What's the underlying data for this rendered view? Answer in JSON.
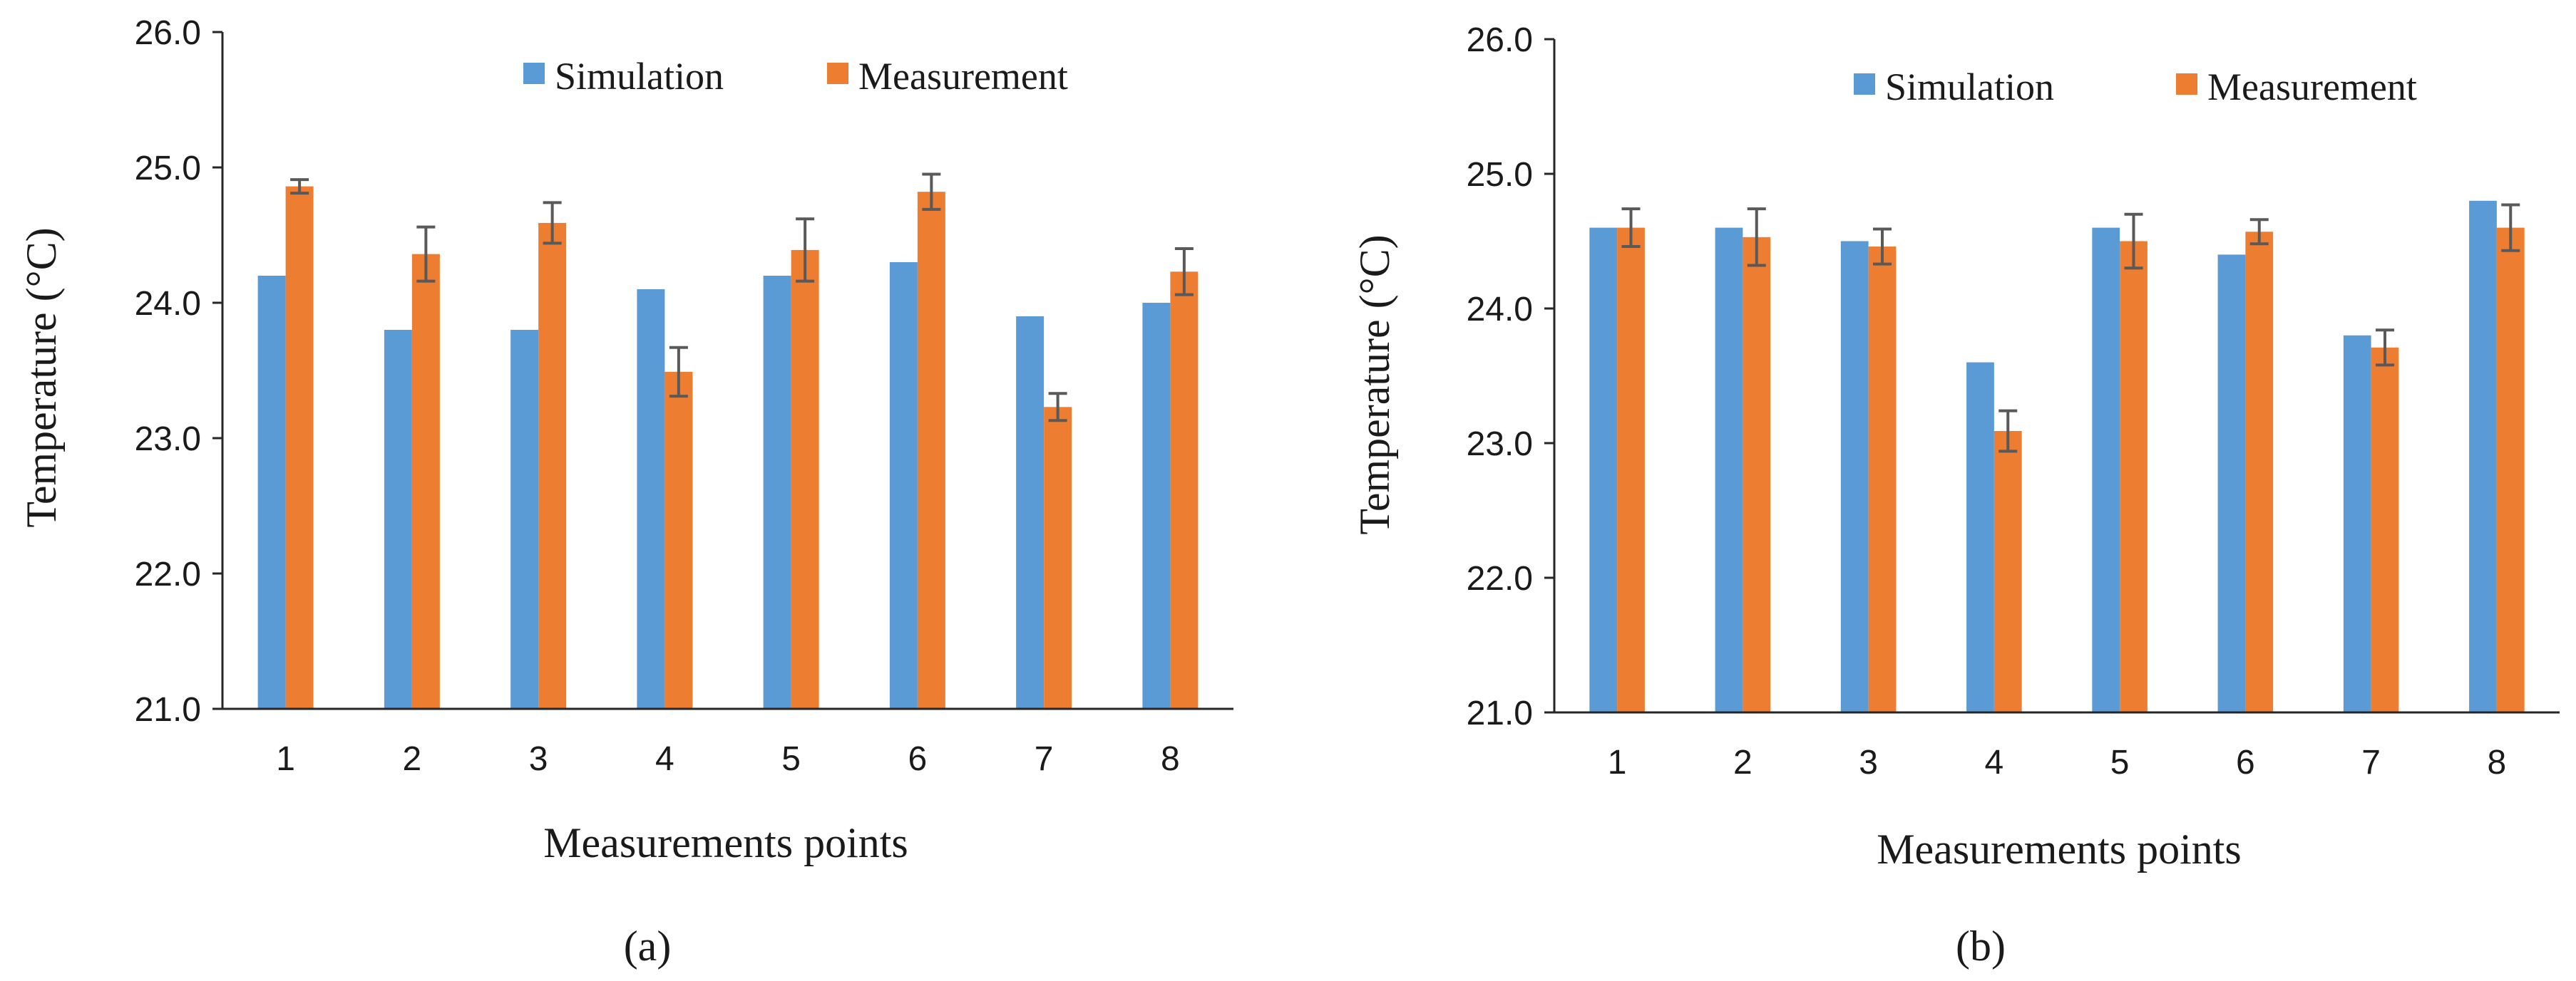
{
  "colors": {
    "simulation": "#5B9BD5",
    "measurement": "#ED7D31",
    "error_bar": "#595959",
    "axis": "#262626"
  },
  "chart_data": [
    {
      "type": "bar",
      "panel_label": "(a)",
      "xlabel": "Measurements points",
      "ylabel": "Temperature (°C)",
      "ylim": [
        21.0,
        26.0
      ],
      "yticks": [
        "21.0",
        "22.0",
        "23.0",
        "24.0",
        "25.0",
        "26.0"
      ],
      "categories": [
        "1",
        "2",
        "3",
        "4",
        "5",
        "6",
        "7",
        "8"
      ],
      "legend": [
        "Simulation",
        "Measurement"
      ],
      "series": [
        {
          "name": "Simulation",
          "values": [
            24.2,
            23.8,
            23.8,
            24.1,
            24.2,
            24.3,
            23.9,
            24.0
          ]
        },
        {
          "name": "Measurement",
          "values": [
            24.86,
            24.36,
            24.59,
            23.49,
            24.39,
            24.82,
            23.23,
            24.23
          ],
          "errors": [
            0.05,
            0.2,
            0.15,
            0.18,
            0.23,
            0.13,
            0.1,
            0.17
          ]
        }
      ]
    },
    {
      "type": "bar",
      "panel_label": "(b)",
      "xlabel": "Measurements points",
      "ylabel": "Temperature (°C)",
      "ylim": [
        21.0,
        26.0
      ],
      "yticks": [
        "21.0",
        "22.0",
        "23.0",
        "24.0",
        "25.0",
        "26.0"
      ],
      "categories": [
        "1",
        "2",
        "3",
        "4",
        "5",
        "6",
        "7",
        "8"
      ],
      "legend": [
        "Simulation",
        "Measurement"
      ],
      "series": [
        {
          "name": "Simulation",
          "values": [
            24.6,
            24.6,
            24.5,
            23.6,
            24.6,
            24.4,
            23.8,
            24.8
          ]
        },
        {
          "name": "Measurement",
          "values": [
            24.6,
            24.53,
            24.46,
            23.09,
            24.5,
            24.57,
            23.71,
            24.6
          ],
          "errors": [
            0.14,
            0.21,
            0.13,
            0.15,
            0.2,
            0.09,
            0.13,
            0.17
          ]
        }
      ]
    }
  ]
}
